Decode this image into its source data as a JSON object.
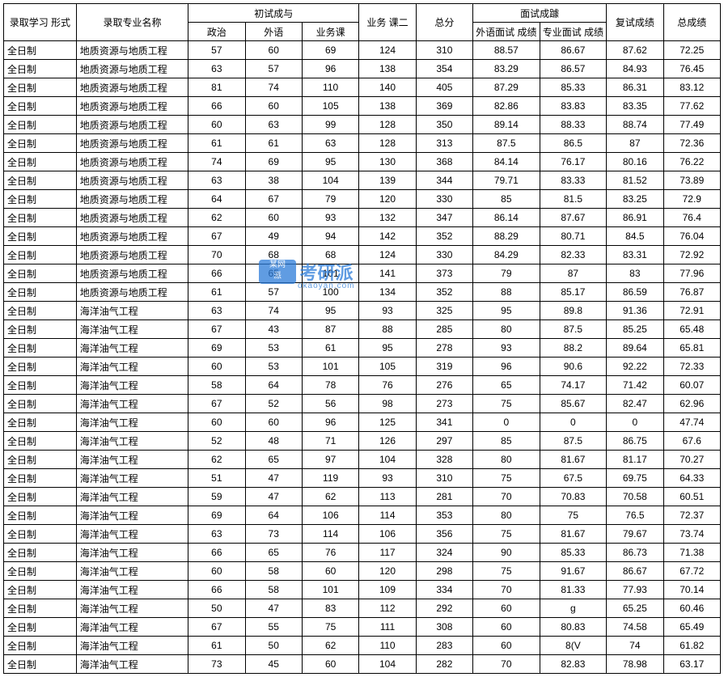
{
  "headers": {
    "study_type": "录取学习 形式",
    "major": "录取专业名称",
    "prelim_group": "初试成与",
    "politics": "政治",
    "foreign": "外语",
    "subject1": "业务课",
    "subject2": "业务 课二",
    "total": "总分",
    "interview_group": "面试成躆",
    "foreign_interview": "外语面试 成绩",
    "major_interview": "专业面试 成绩",
    "retest": "复试成绩",
    "final": "总成绩"
  },
  "watermark_text": "考研派",
  "watermark_sub": "okaoyan.com",
  "rows": [
    [
      "全日制",
      "地质资源与地质工程",
      "57",
      "60",
      "69",
      "124",
      "310",
      "88.57",
      "86.67",
      "87.62",
      "72.25"
    ],
    [
      "全日制",
      "地质资源与地质工程",
      "63",
      "57",
      "96",
      "138",
      "354",
      "83.29",
      "86.57",
      "84.93",
      "76.45"
    ],
    [
      "全日制",
      "地质资源与地质工程",
      "81",
      "74",
      "110",
      "140",
      "405",
      "87.29",
      "85.33",
      "86.31",
      "83.12"
    ],
    [
      "全日制",
      "地质资源与地质工程",
      "66",
      "60",
      "105",
      "138",
      "369",
      "82.86",
      "83.83",
      "83.35",
      "77.62"
    ],
    [
      "全日制",
      "地质资源与地质工程",
      "60",
      "63",
      "99",
      "128",
      "350",
      "89.14",
      "88.33",
      "88.74",
      "77.49"
    ],
    [
      "全日制",
      "地质资源与地质工程",
      "61",
      "61",
      "63",
      "128",
      "313",
      "87.5",
      "86.5",
      "87",
      "72.36"
    ],
    [
      "全日制",
      "地质资源与地质工程",
      "74",
      "69",
      "95",
      "130",
      "368",
      "84.14",
      "76.17",
      "80.16",
      "76.22"
    ],
    [
      "全日制",
      "地质资源与地质工程",
      "63",
      "38",
      "104",
      "139",
      "344",
      "79.71",
      "83.33",
      "81.52",
      "73.89"
    ],
    [
      "全日制",
      "地质资源与地质工程",
      "64",
      "67",
      "79",
      "120",
      "330",
      "85",
      "81.5",
      "83.25",
      "72.9"
    ],
    [
      "全日制",
      "地质资源与地质工程",
      "62",
      "60",
      "93",
      "132",
      "347",
      "86.14",
      "87.67",
      "86.91",
      "76.4"
    ],
    [
      "全日制",
      "地质资源与地质工程",
      "67",
      "49",
      "94",
      "142",
      "352",
      "88.29",
      "80.71",
      "84.5",
      "76.04"
    ],
    [
      "全日制",
      "地质资源与地质工程",
      "70",
      "68",
      "68",
      "124",
      "330",
      "84.29",
      "82.33",
      "83.31",
      "72.92"
    ],
    [
      "全日制",
      "地质资源与地质工程",
      "66",
      "65",
      "101",
      "141",
      "373",
      "79",
      "87",
      "83",
      "77.96"
    ],
    [
      "全日制",
      "地质资源与地质工程",
      "61",
      "57",
      "100",
      "134",
      "352",
      "88",
      "85.17",
      "86.59",
      "76.87"
    ],
    [
      "全日制",
      "海洋油气工程",
      "63",
      "74",
      "95",
      "93",
      "325",
      "95",
      "89.8",
      "91.36",
      "72.91"
    ],
    [
      "全日制",
      "海洋油气工程",
      "67",
      "43",
      "87",
      "88",
      "285",
      "80",
      "87.5",
      "85.25",
      "65.48"
    ],
    [
      "全日制",
      "海洋油气工程",
      "69",
      "53",
      "61",
      "95",
      "278",
      "93",
      "88.2",
      "89.64",
      "65.81"
    ],
    [
      "全日制",
      "海洋油气工程",
      "60",
      "53",
      "101",
      "105",
      "319",
      "96",
      "90.6",
      "92.22",
      "72.33"
    ],
    [
      "全日制",
      "海洋油气工程",
      "58",
      "64",
      "78",
      "76",
      "276",
      "65",
      "74.17",
      "71.42",
      "60.07"
    ],
    [
      "全日制",
      "海洋油气工程",
      "67",
      "52",
      "56",
      "98",
      "273",
      "75",
      "85.67",
      "82.47",
      "62.96"
    ],
    [
      "全日制",
      "海洋油气工程",
      "60",
      "60",
      "96",
      "125",
      "341",
      "0",
      "0",
      "0",
      "47.74"
    ],
    [
      "全日制",
      "海洋油气工程",
      "52",
      "48",
      "71",
      "126",
      "297",
      "85",
      "87.5",
      "86.75",
      "67.6"
    ],
    [
      "全日制",
      "海洋油气工程",
      "62",
      "65",
      "97",
      "104",
      "328",
      "80",
      "81.67",
      "81.17",
      "70.27"
    ],
    [
      "全日制",
      "海洋油气工程",
      "51",
      "47",
      "119",
      "93",
      "310",
      "75",
      "67.5",
      "69.75",
      "64.33"
    ],
    [
      "全日制",
      "海洋油气工程",
      "59",
      "47",
      "62",
      "113",
      "281",
      "70",
      "70.83",
      "70.58",
      "60.51"
    ],
    [
      "全日制",
      "海洋油气工程",
      "69",
      "64",
      "106",
      "114",
      "353",
      "80",
      "75",
      "76.5",
      "72.37"
    ],
    [
      "全日制",
      "海洋油气工程",
      "63",
      "73",
      "114",
      "106",
      "356",
      "75",
      "81.67",
      "79.67",
      "73.74"
    ],
    [
      "全日制",
      "海洋油气工程",
      "66",
      "65",
      "76",
      "117",
      "324",
      "90",
      "85.33",
      "86.73",
      "71.38"
    ],
    [
      "全日制",
      "海洋油气工程",
      "60",
      "58",
      "60",
      "120",
      "298",
      "75",
      "91.67",
      "86.67",
      "67.72"
    ],
    [
      "全日制",
      "海洋油气工程",
      "66",
      "58",
      "101",
      "109",
      "334",
      "70",
      "81.33",
      "77.93",
      "70.14"
    ],
    [
      "全日制",
      "海洋油气工程",
      "50",
      "47",
      "83",
      "112",
      "292",
      "60",
      "g",
      "65.25",
      "60.46"
    ],
    [
      "全日制",
      "海洋油气工程",
      "67",
      "55",
      "75",
      "111",
      "308",
      "60",
      "80.83",
      "74.58",
      "65.49"
    ],
    [
      "全日制",
      "海洋油气工程",
      "61",
      "50",
      "62",
      "110",
      "283",
      "60",
      "8(V",
      "74",
      "61.82"
    ],
    [
      "全日制",
      "海洋油气工程",
      "73",
      "45",
      "60",
      "104",
      "282",
      "70",
      "82.83",
      "78.98",
      "63.17"
    ]
  ]
}
